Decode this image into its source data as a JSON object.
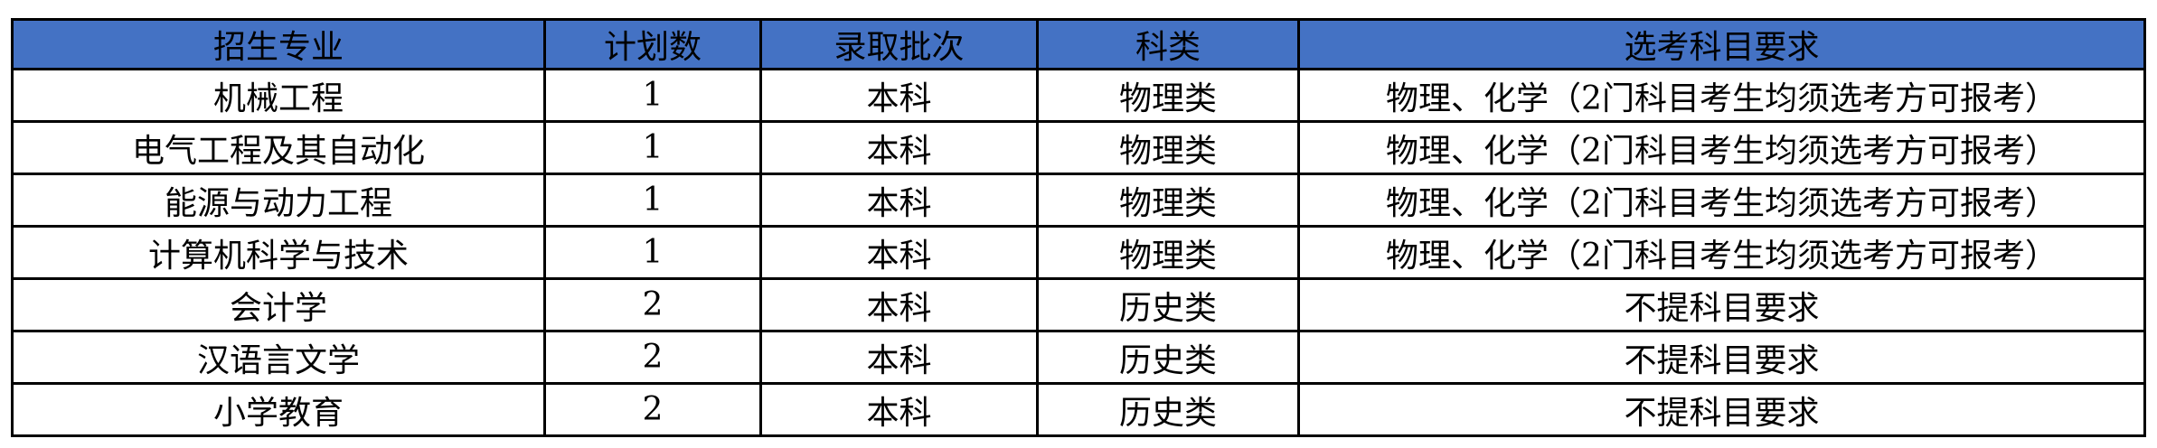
{
  "table": {
    "header_color": "#4472C4",
    "columns": [
      "招生专业",
      "计划数",
      "录取批次",
      "科类",
      "选考科目要求"
    ],
    "rows": [
      [
        "机械工程",
        "1",
        "本科",
        "物理类",
        "物理、化学（2门科目考生均须选考方可报考）"
      ],
      [
        "电气工程及其自动化",
        "1",
        "本科",
        "物理类",
        "物理、化学（2门科目考生均须选考方可报考）"
      ],
      [
        "能源与动力工程",
        "1",
        "本科",
        "物理类",
        "物理、化学（2门科目考生均须选考方可报考）"
      ],
      [
        "计算机科学与技术",
        "1",
        "本科",
        "物理类",
        "物理、化学（2门科目考生均须选考方可报考）"
      ],
      [
        "会计学",
        "2",
        "本科",
        "历史类",
        "不提科目要求"
      ],
      [
        "汉语言文学",
        "2",
        "本科",
        "历史类",
        "不提科目要求"
      ],
      [
        "小学教育",
        "2",
        "本科",
        "历史类",
        "不提科目要求"
      ]
    ]
  }
}
